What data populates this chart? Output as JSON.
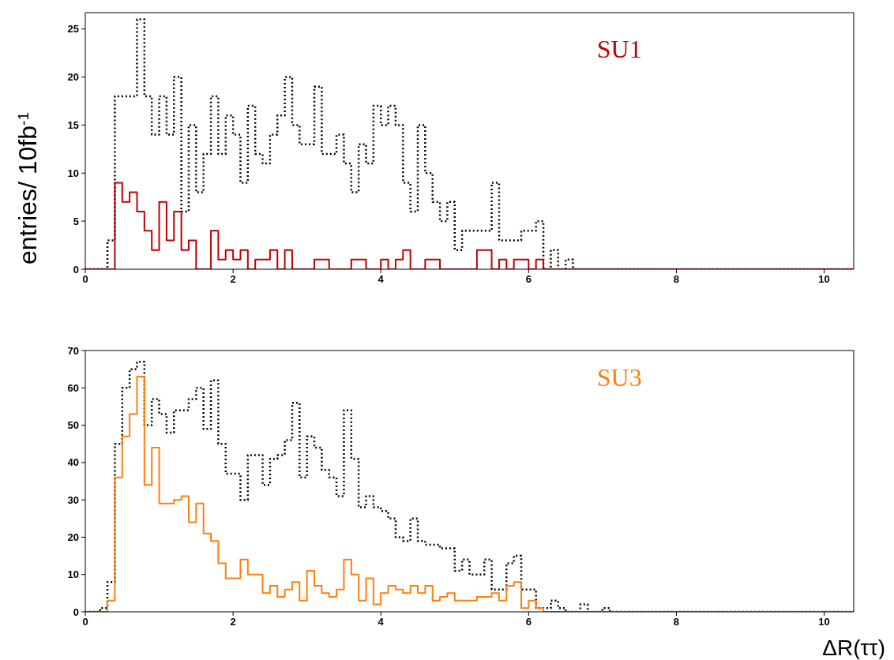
{
  "chart_data": [
    {
      "type": "histogram",
      "ylabel": "entries/ 10fb$^{-1}$",
      "xlim": [
        0,
        10.4
      ],
      "ylim": [
        0,
        26.7
      ],
      "xticks": [
        0,
        2,
        4,
        6,
        8,
        10
      ],
      "yticks": [
        0,
        5,
        10,
        15,
        20,
        25
      ],
      "bins": [
        0,
        0.1,
        0.2,
        0.3,
        0.4,
        0.5,
        0.6,
        0.7,
        0.8,
        0.9,
        1,
        1.1,
        1.2,
        1.3,
        1.4,
        1.5,
        1.6,
        1.7,
        1.8,
        1.9,
        2,
        2.1,
        2.2,
        2.3,
        2.4,
        2.5,
        2.6,
        2.7,
        2.8,
        2.9,
        3,
        3.1,
        3.2,
        3.3,
        3.4,
        3.5,
        3.6,
        3.7,
        3.8,
        3.9,
        4,
        4.1,
        4.2,
        4.3,
        4.4,
        4.5,
        4.6,
        4.7,
        4.8,
        4.9,
        5,
        5.1,
        5.2,
        5.3,
        5.4,
        5.5,
        5.6,
        5.7,
        5.8,
        5.9,
        6,
        6.1,
        6.2,
        6.3,
        6.4,
        6.5,
        6.6,
        6.7,
        6.8,
        6.9,
        7,
        7.1,
        7.2,
        7.3,
        7.4,
        7.5,
        7.6,
        7.7,
        7.8,
        7.9,
        8,
        8.1,
        8.2,
        8.3,
        8.4,
        8.5,
        8.6,
        8.7,
        8.8,
        8.9,
        9,
        9.1,
        9.2,
        9.3,
        9.4,
        9.5,
        9.6,
        9.7,
        9.8,
        9.9,
        10,
        10.1,
        10.2,
        10.3,
        10.4
      ],
      "series": [
        {
          "color": "#000000",
          "line_style": "dotted",
          "values": [
            0,
            0,
            0,
            3,
            18,
            18,
            18,
            26,
            18,
            14,
            18,
            14,
            20,
            6,
            15,
            8,
            12,
            18,
            12,
            16,
            14,
            9,
            17,
            12,
            11,
            14,
            16,
            20,
            15,
            13,
            13,
            19,
            12,
            12,
            14,
            11,
            8,
            13,
            11,
            17,
            15,
            17,
            15,
            9,
            6,
            15,
            10,
            7,
            5,
            7,
            2,
            4,
            4,
            4,
            4,
            9,
            3,
            3,
            3,
            4,
            4,
            5,
            0,
            2,
            0,
            1,
            0,
            0,
            0,
            0,
            0,
            0,
            0,
            0,
            0,
            0,
            0,
            0,
            0,
            0,
            0,
            0,
            0,
            0,
            0,
            0,
            0,
            0,
            0,
            0,
            0,
            0,
            0,
            0,
            0,
            0,
            0,
            0,
            0,
            0,
            0,
            0,
            0,
            0
          ]
        },
        {
          "name": "SU1",
          "color": "#c00000",
          "line_style": "solid",
          "values": [
            0,
            0,
            0,
            0,
            9,
            7,
            8,
            6,
            4,
            2,
            7,
            3,
            6,
            2,
            3,
            0,
            0,
            4,
            1,
            2,
            1,
            2,
            0,
            1,
            1,
            2,
            0,
            2,
            0,
            0,
            0,
            1,
            1,
            0,
            0,
            0,
            1,
            1,
            0,
            0,
            1,
            0,
            1,
            2,
            0,
            0,
            1,
            1,
            0,
            0,
            0,
            0,
            0,
            2,
            2,
            0,
            1,
            0,
            1,
            1,
            0,
            1,
            0,
            0,
            0,
            0,
            0,
            0,
            0,
            0,
            0,
            0,
            0,
            0,
            0,
            0,
            0,
            0,
            0,
            0,
            0,
            0,
            0,
            0,
            0,
            0,
            0,
            0,
            0,
            0,
            0,
            0,
            0,
            0,
            0,
            0,
            0,
            0,
            0,
            0,
            0,
            0,
            0,
            0
          ]
        }
      ]
    },
    {
      "type": "histogram",
      "xlabel": "ΔR(ττ)",
      "xlim": [
        0,
        10.4
      ],
      "ylim": [
        0,
        70
      ],
      "xticks": [
        0,
        2,
        4,
        6,
        8,
        10
      ],
      "yticks": [
        0,
        10,
        20,
        30,
        40,
        50,
        60,
        70
      ],
      "bins": [
        0,
        0.1,
        0.2,
        0.3,
        0.4,
        0.5,
        0.6,
        0.7,
        0.8,
        0.9,
        1,
        1.1,
        1.2,
        1.3,
        1.4,
        1.5,
        1.6,
        1.7,
        1.8,
        1.9,
        2,
        2.1,
        2.2,
        2.3,
        2.4,
        2.5,
        2.6,
        2.7,
        2.8,
        2.9,
        3,
        3.1,
        3.2,
        3.3,
        3.4,
        3.5,
        3.6,
        3.7,
        3.8,
        3.9,
        4,
        4.1,
        4.2,
        4.3,
        4.4,
        4.5,
        4.6,
        4.7,
        4.8,
        4.9,
        5,
        5.1,
        5.2,
        5.3,
        5.4,
        5.5,
        5.6,
        5.7,
        5.8,
        5.9,
        6,
        6.1,
        6.2,
        6.3,
        6.4,
        6.5,
        6.6,
        6.7,
        6.8,
        6.9,
        7,
        7.1,
        7.2,
        7.3,
        7.4,
        7.5,
        7.6,
        7.7,
        7.8,
        7.9,
        8,
        8.1,
        8.2,
        8.3,
        8.4,
        8.5,
        8.6,
        8.7,
        8.8,
        8.9,
        9,
        9.1,
        9.2,
        9.3,
        9.4,
        9.5,
        9.6,
        9.7,
        9.8,
        9.9,
        10,
        10.1,
        10.2,
        10.3,
        10.4
      ],
      "series": [
        {
          "color": "#000000",
          "line_style": "dotted",
          "values": [
            0,
            0,
            1,
            8,
            45,
            60,
            65,
            67,
            50,
            57,
            53,
            48,
            54,
            54,
            57,
            60,
            49,
            62,
            45,
            37,
            37,
            30,
            42,
            42,
            34,
            41,
            42,
            46,
            56,
            36,
            47,
            44,
            38,
            36,
            31,
            54,
            41,
            28,
            31,
            28,
            27,
            25,
            20,
            19,
            25,
            19,
            18,
            18,
            17,
            17,
            11,
            14,
            10,
            10,
            14,
            6,
            6,
            13,
            15,
            6,
            6,
            1,
            1,
            3,
            1,
            0,
            0,
            2,
            0,
            0,
            1,
            0,
            0,
            0,
            0,
            0,
            0,
            0,
            0,
            0,
            0,
            0,
            0,
            0,
            0,
            0,
            0,
            0,
            0,
            0,
            0,
            0,
            0,
            0,
            0,
            0,
            0,
            0,
            0,
            0,
            0,
            0,
            0,
            0
          ]
        },
        {
          "name": "SU3",
          "color": "#ff7f0e",
          "line_style": "solid",
          "values": [
            0,
            0,
            0,
            3,
            36,
            47,
            53,
            63,
            34,
            44,
            29,
            29,
            30,
            31,
            24,
            29,
            21,
            19,
            13,
            9,
            9,
            14,
            10,
            10,
            5,
            7,
            4,
            6,
            8,
            3,
            11,
            7,
            5,
            4,
            6,
            14,
            10,
            3,
            9,
            2,
            5,
            7,
            6,
            5,
            7,
            5,
            7,
            3,
            4,
            5,
            3,
            3,
            3,
            4,
            4,
            5,
            3,
            7,
            8,
            1,
            3,
            1,
            0,
            0,
            0,
            0,
            0,
            0,
            0,
            0,
            0,
            0,
            0,
            0,
            0,
            0,
            0,
            0,
            0,
            0,
            0,
            0,
            0,
            0,
            0,
            0,
            0,
            0,
            0,
            0,
            0,
            0,
            0,
            0,
            0,
            0,
            0,
            0,
            0,
            0,
            0,
            0,
            0,
            0
          ]
        }
      ]
    }
  ]
}
